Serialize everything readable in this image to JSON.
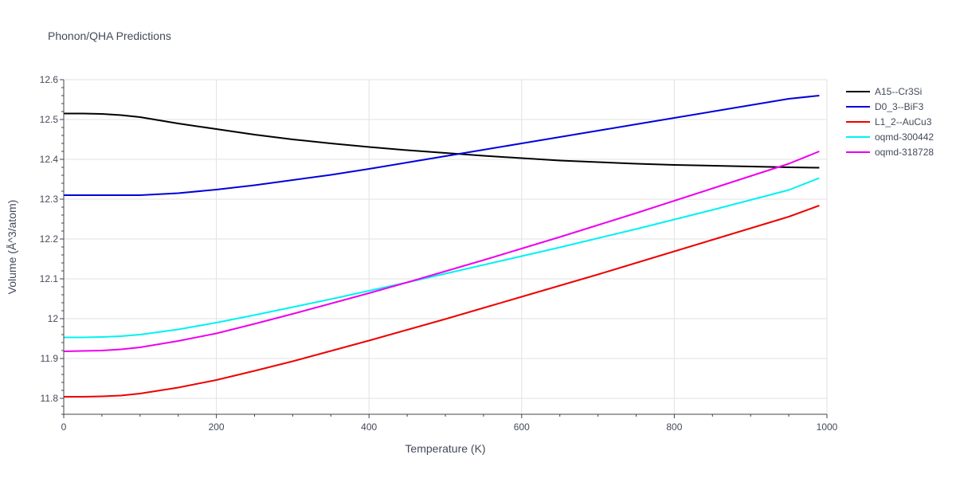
{
  "chart_data": {
    "type": "line",
    "title": "Phonon/QHA Predictions",
    "xlabel": "Temperature (K)",
    "ylabel": "Volume (Å^3/atom)",
    "xlim": [
      0,
      1000
    ],
    "ylim": [
      11.76,
      12.6
    ],
    "xticks": [
      0,
      200,
      400,
      600,
      800,
      1000
    ],
    "xtick_labels": [
      "0",
      "200",
      "400",
      "600",
      "800",
      "1000"
    ],
    "yticks": [
      11.8,
      11.9,
      12.0,
      12.1,
      12.2,
      12.3,
      12.4,
      12.5,
      12.6
    ],
    "ytick_labels": [
      "11.8",
      "11.9",
      "12",
      "12.1",
      "12.2",
      "12.3",
      "12.4",
      "12.5",
      "12.6"
    ],
    "grid": true,
    "legend_position": "top-right",
    "series": [
      {
        "name": "A15--Cr3Si",
        "color": "#000000",
        "x": [
          0,
          25,
          50,
          75,
          100,
          150,
          200,
          250,
          300,
          350,
          400,
          450,
          500,
          550,
          600,
          650,
          700,
          750,
          800,
          850,
          900,
          950,
          990
        ],
        "y": [
          12.515,
          12.515,
          12.514,
          12.511,
          12.506,
          12.49,
          12.476,
          12.462,
          12.45,
          12.44,
          12.431,
          12.423,
          12.416,
          12.409,
          12.403,
          12.397,
          12.393,
          12.389,
          12.386,
          12.384,
          12.382,
          12.38,
          12.379
        ]
      },
      {
        "name": "D0_3--BiF3",
        "color": "#0000dd",
        "x": [
          0,
          25,
          50,
          75,
          100,
          150,
          200,
          250,
          300,
          350,
          400,
          450,
          500,
          550,
          600,
          650,
          700,
          750,
          800,
          850,
          900,
          950,
          990
        ],
        "y": [
          12.31,
          12.31,
          12.31,
          12.31,
          12.31,
          12.315,
          12.324,
          12.335,
          12.348,
          12.361,
          12.376,
          12.392,
          12.408,
          12.424,
          12.44,
          12.456,
          12.472,
          12.488,
          12.504,
          12.52,
          12.536,
          12.552,
          12.56
        ]
      },
      {
        "name": "L1_2--AuCu3",
        "color": "#ee0000",
        "x": [
          0,
          25,
          50,
          75,
          100,
          150,
          200,
          250,
          300,
          350,
          400,
          450,
          500,
          550,
          600,
          650,
          700,
          750,
          800,
          850,
          900,
          950,
          990
        ],
        "y": [
          11.804,
          11.804,
          11.805,
          11.807,
          11.812,
          11.827,
          11.846,
          11.869,
          11.893,
          11.919,
          11.945,
          11.972,
          11.999,
          12.027,
          12.055,
          12.083,
          12.111,
          12.14,
          12.169,
          12.198,
          12.227,
          12.256,
          12.284
        ]
      },
      {
        "name": "oqmd-300442",
        "color": "#00f2f2",
        "x": [
          0,
          25,
          50,
          75,
          100,
          150,
          200,
          250,
          300,
          350,
          400,
          450,
          500,
          550,
          600,
          650,
          700,
          750,
          800,
          850,
          900,
          950,
          990
        ],
        "y": [
          11.953,
          11.953,
          11.954,
          11.956,
          11.96,
          11.973,
          11.99,
          12.009,
          12.029,
          12.049,
          12.07,
          12.091,
          12.113,
          12.135,
          12.157,
          12.179,
          12.202,
          12.225,
          12.249,
          12.273,
          12.298,
          12.323,
          12.353
        ]
      },
      {
        "name": "oqmd-318728",
        "color": "#ee00ee",
        "x": [
          0,
          25,
          50,
          75,
          100,
          150,
          200,
          250,
          300,
          350,
          400,
          450,
          500,
          550,
          600,
          650,
          700,
          750,
          800,
          850,
          900,
          950,
          990
        ],
        "y": [
          11.918,
          11.919,
          11.92,
          11.923,
          11.928,
          11.944,
          11.963,
          11.987,
          12.012,
          12.038,
          12.064,
          12.091,
          12.119,
          12.147,
          12.176,
          12.205,
          12.235,
          12.265,
          12.296,
          12.327,
          12.358,
          12.389,
          12.42
        ]
      }
    ]
  }
}
